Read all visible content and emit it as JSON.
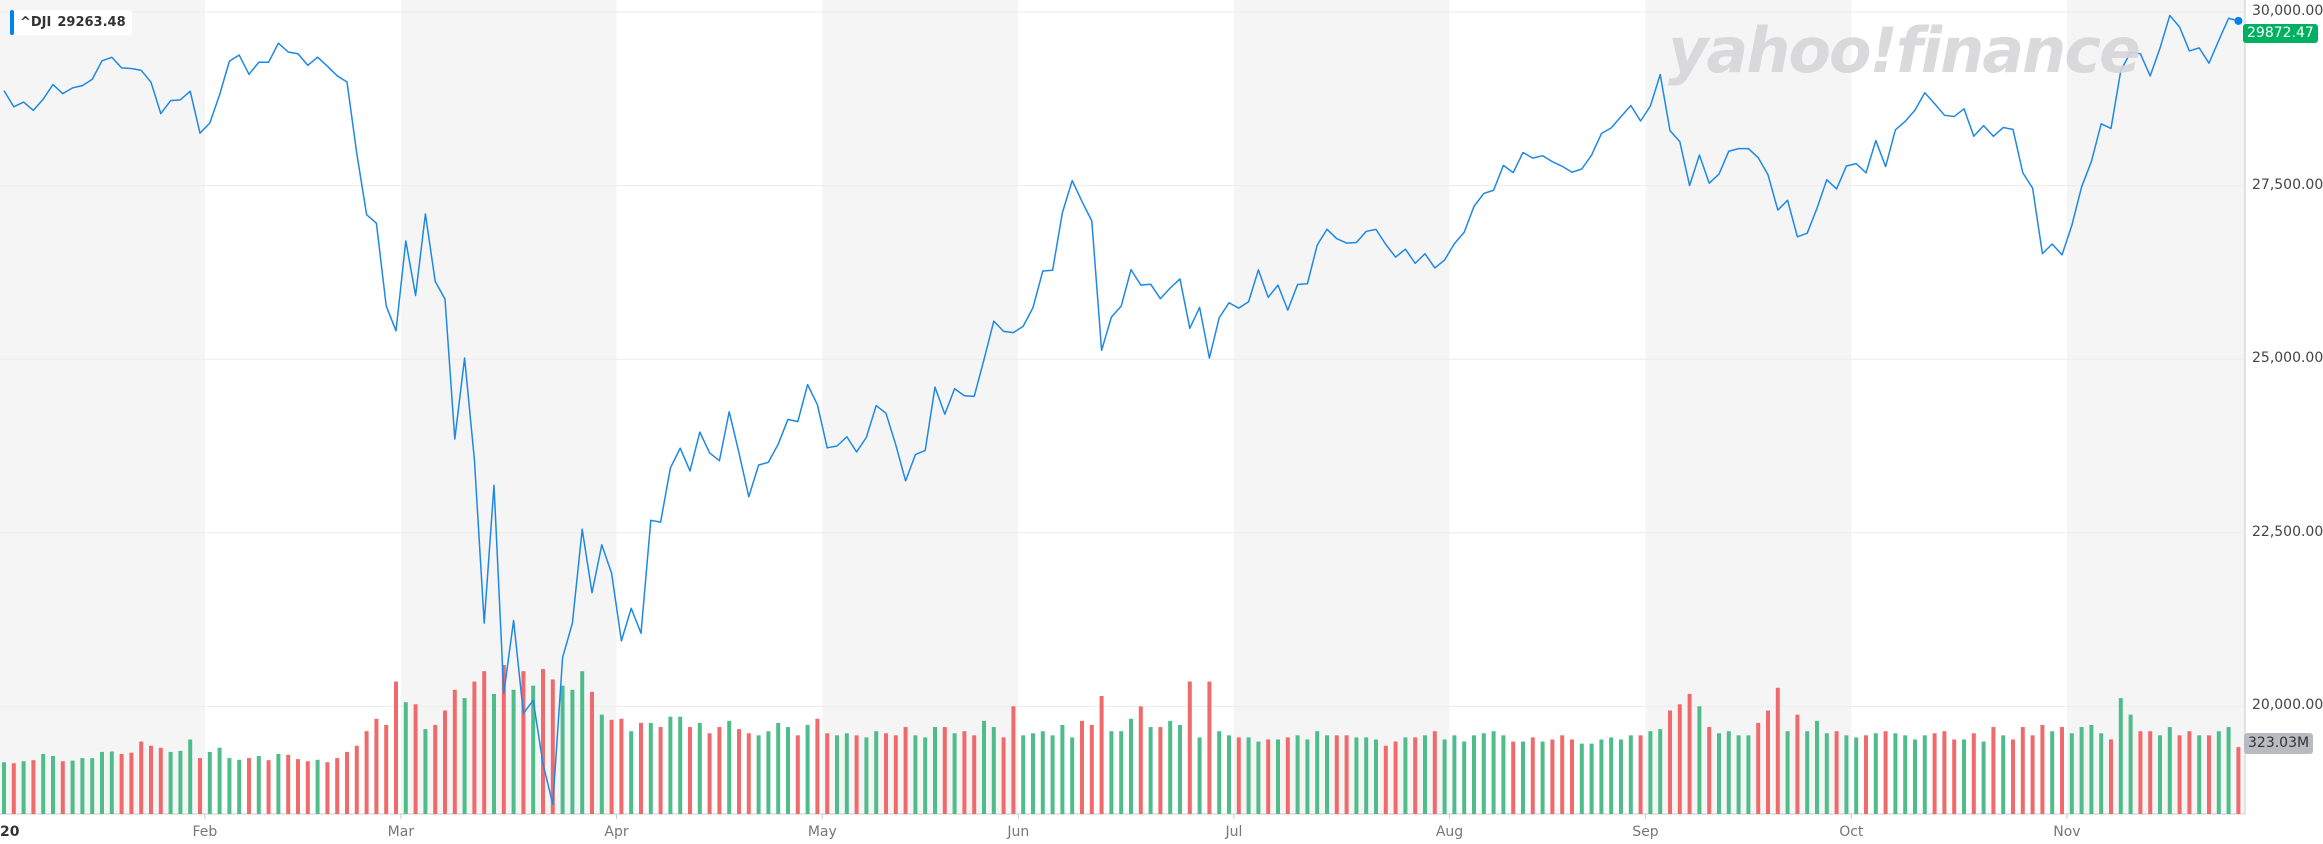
{
  "legend": {
    "symbol": "^DJI",
    "value": "29263.48",
    "color": "#0081f2"
  },
  "watermark": "yahoo!finance",
  "last_price_tag": {
    "value": "29872.47",
    "color": "#00b061"
  },
  "volume_tag": "323.03M",
  "chart_data": {
    "type": "line",
    "title": "",
    "y_axis": {
      "ticks": [
        "30,000.00",
        "27,500.00",
        "25,000.00",
        "22,500.00",
        "20,000.00"
      ],
      "tick_values": [
        30000,
        27500,
        25000,
        22500,
        20000
      ],
      "position": "right"
    },
    "x_axis": {
      "labels": [
        "20",
        "Feb",
        "Mar",
        "Apr",
        "May",
        "Jun",
        "Jul",
        "Aug",
        "Sep",
        "Oct",
        "Nov"
      ]
    },
    "months": [
      {
        "label": "20",
        "close": [
          28868,
          28634,
          28703,
          28583,
          28745,
          28956,
          28824,
          28907,
          28940,
          29030,
          29297,
          29348,
          29196,
          29186,
          29160,
          28989,
          28536,
          28723,
          28735,
          28859,
          28256
        ],
        "volume": [
          250,
          245,
          255,
          260,
          290,
          280,
          255,
          258,
          270,
          270,
          300,
          302,
          290,
          296,
          350,
          330,
          320,
          300,
          305,
          360,
          270
        ]
      },
      {
        "label": "Feb",
        "close": [
          28400,
          28808,
          29291,
          29380,
          29103,
          29277,
          29276,
          29551,
          29424,
          29399,
          29232,
          29349,
          29220,
          29081,
          28992,
          27961,
          27082,
          26958,
          25767,
          25409
        ],
        "volume": [
          300,
          320,
          270,
          262,
          270,
          280,
          260,
          290,
          286,
          265,
          255,
          262,
          250,
          270,
          300,
          330,
          400,
          460,
          430,
          640
        ]
      },
      {
        "label": "Mar",
        "close": [
          26703,
          25918,
          27091,
          26121,
          25865,
          23851,
          25018,
          23553,
          21200,
          23185,
          20189,
          21237,
          19899,
          20087,
          19174,
          18592,
          20705,
          21200,
          22552,
          21637,
          22327,
          21917
        ],
        "volume": [
          540,
          530,
          410,
          430,
          500,
          600,
          560,
          640,
          690,
          580,
          720,
          600,
          690,
          620,
          700,
          650,
          620,
          600,
          690,
          590,
          480,
          455
        ]
      },
      {
        "label": "Apr",
        "close": [
          20943,
          21413,
          21053,
          22680,
          22654,
          23434,
          23719,
          23391,
          23950,
          23650,
          23538,
          24243,
          23650,
          23019,
          23475,
          23516,
          23776,
          24134,
          24101,
          24634,
          24345
        ],
        "volume": [
          460,
          400,
          440,
          440,
          420,
          470,
          470,
          420,
          440,
          390,
          420,
          450,
          410,
          390,
          380,
          400,
          440,
          420,
          380,
          430,
          460
        ]
      },
      {
        "label": "May",
        "close": [
          23724,
          23750,
          23883,
          23664,
          23876,
          24332,
          24221,
          23765,
          23248,
          23626,
          23686,
          24598,
          24207,
          24575,
          24474,
          24465,
          24995,
          25548,
          25401,
          25383
        ],
        "volume": [
          390,
          380,
          390,
          380,
          370,
          400,
          390,
          380,
          420,
          380,
          370,
          420,
          420,
          390,
          400,
          380,
          450,
          420,
          370,
          520
        ]
      },
      {
        "label": "Jun",
        "close": [
          25475,
          25743,
          26270,
          26281,
          27111,
          27572,
          27272,
          26990,
          25128,
          25606,
          25764,
          26290,
          26067,
          26080,
          25871,
          26025,
          26156,
          25445,
          25746,
          25016,
          25596,
          25813
        ],
        "volume": [
          380,
          390,
          400,
          380,
          430,
          370,
          450,
          430,
          570,
          400,
          400,
          460,
          520,
          420,
          420,
          450,
          430,
          640,
          370,
          640,
          400,
          380
        ]
      },
      {
        "label": "Jul",
        "close": [
          25735,
          25827,
          26287,
          25891,
          26067,
          25707,
          26076,
          26086,
          26643,
          26871,
          26735,
          26672,
          26680,
          26840,
          26870,
          26652,
          26470,
          26584,
          26380,
          26519,
          26314,
          26428
        ],
        "volume": [
          370,
          370,
          350,
          360,
          360,
          370,
          380,
          360,
          400,
          380,
          380,
          380,
          370,
          370,
          360,
          330,
          350,
          370,
          370,
          380,
          400,
          360
        ]
      },
      {
        "label": "Aug",
        "close": [
          26665,
          26828,
          27201,
          27387,
          27433,
          27791,
          27687,
          27977,
          27896,
          27931,
          27844,
          27778,
          27692,
          27739,
          27940,
          28248,
          28331,
          28493,
          28654,
          28430
        ],
        "volume": [
          380,
          350,
          380,
          390,
          400,
          380,
          350,
          350,
          370,
          350,
          360,
          380,
          360,
          340,
          340,
          360,
          370,
          360,
          380,
          380
        ]
      },
      {
        "label": "Sep",
        "close": [
          28646,
          29100,
          28292,
          28133,
          27501,
          27940,
          27535,
          27666,
          27995,
          28032,
          28033,
          27902,
          27657,
          27148,
          27288,
          26763,
          26815,
          27174,
          27584,
          27452,
          27782
        ],
        "volume": [
          400,
          410,
          500,
          530,
          580,
          520,
          420,
          390,
          400,
          380,
          380,
          440,
          500,
          610,
          400,
          480,
          400,
          450,
          390,
          400,
          380
        ]
      },
      {
        "label": "Oct",
        "close": [
          27817,
          27683,
          28149,
          27773,
          28303,
          28425,
          28587,
          28838,
          28680,
          28514,
          28494,
          28606,
          28211,
          28364,
          28210,
          28336,
          28309,
          27685,
          27464,
          26520,
          26659,
          26502
        ],
        "volume": [
          370,
          380,
          390,
          400,
          390,
          380,
          360,
          380,
          390,
          400,
          360,
          360,
          390,
          350,
          420,
          380,
          360,
          420,
          380,
          430,
          400,
          420
        ]
      },
      {
        "label": "Nov",
        "close": [
          26925,
          27481,
          27848,
          28390,
          28323,
          29158,
          29421,
          29398,
          29080,
          29479,
          29950,
          29784,
          29439,
          29483,
          29263,
          29592,
          29910,
          29872
        ],
        "volume": [
          390,
          420,
          430,
          390,
          360,
          560,
          480,
          400,
          400,
          380,
          420,
          380,
          400,
          380,
          380,
          400,
          420,
          323
        ]
      }
    ],
    "volume_unit": "M",
    "grid": true,
    "shaded_months": [
      "20",
      "Mar",
      "May",
      "Jul",
      "Sep",
      "Nov"
    ]
  },
  "colors": {
    "line": "#1e88e5",
    "up": "#4fbd8a",
    "down": "#f06a6c",
    "band": "#f5f5f6",
    "grid": "#ececec"
  }
}
